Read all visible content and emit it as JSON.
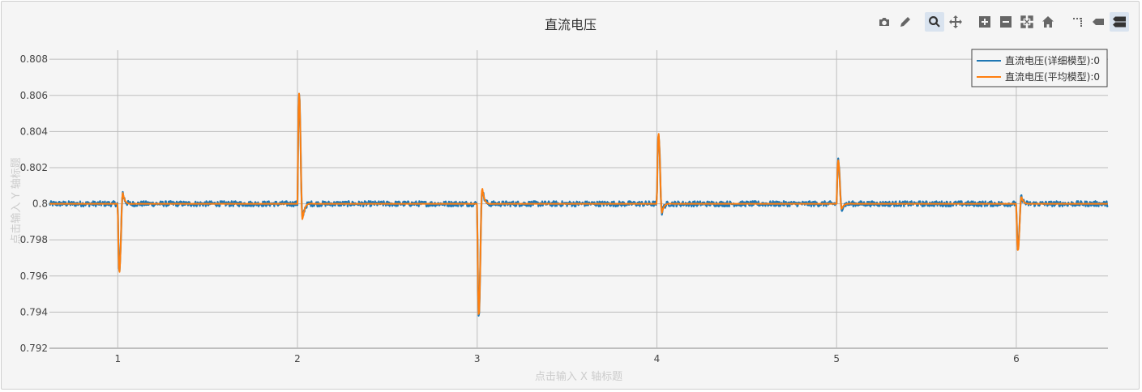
{
  "toolbar": {
    "buttons": [
      {
        "name": "camera-icon",
        "active": false
      },
      {
        "name": "pencil-icon",
        "active": false
      },
      {
        "name": "zoom-icon",
        "active": true
      },
      {
        "name": "pan-icon",
        "active": false
      },
      {
        "name": "zoom-in-icon",
        "active": false
      },
      {
        "name": "zoom-out-icon",
        "active": false
      },
      {
        "name": "autoscale-icon",
        "active": false
      },
      {
        "name": "home-icon",
        "active": false
      },
      {
        "name": "spike-lines-icon",
        "active": false
      },
      {
        "name": "hover-closest-icon",
        "active": false
      },
      {
        "name": "hover-compare-icon",
        "active": true
      }
    ]
  },
  "chart_data": {
    "type": "line",
    "title": "直流电压",
    "xlabel": "点击输入 X 轴标题",
    "ylabel": "点击输入 Y 轴标题",
    "xlim": [
      0.62,
      6.51
    ],
    "ylim": [
      0.792,
      0.8085
    ],
    "x_ticks": [
      1,
      2,
      3,
      4,
      5,
      6
    ],
    "x_tick_labels": [
      "1",
      "2",
      "3",
      "4",
      "5",
      "6"
    ],
    "y_ticks": [
      0.792,
      0.794,
      0.796,
      0.798,
      0.8,
      0.802,
      0.804,
      0.806,
      0.808
    ],
    "y_tick_labels": [
      "0.792",
      "0.794",
      "0.796",
      "0.798",
      "0.8",
      "0.802",
      "0.804",
      "0.806",
      "0.808"
    ],
    "grid": true,
    "legend_position": "top-right",
    "baseline": 0.8,
    "events": [
      {
        "t": 1.0,
        "peak": 0.7962,
        "overshoot": 0.8006
      },
      {
        "t": 2.0,
        "peak": 0.8061,
        "overshoot": 0.7991
      },
      {
        "t": 3.0,
        "peak": 0.7938,
        "overshoot": 0.8009
      },
      {
        "t": 4.0,
        "peak": 0.8039,
        "overshoot": 0.7995
      },
      {
        "t": 5.0,
        "peak": 0.8024,
        "overshoot": 0.7997
      },
      {
        "t": 6.0,
        "peak": 0.7974,
        "overshoot": 0.8004
      }
    ],
    "series": [
      {
        "name": "直流电压(详细模型):0",
        "color": "#1f77b4",
        "noise": 0.00015
      },
      {
        "name": "直流电压(平均模型):0",
        "color": "#ff7f0e",
        "noise": 0.0
      }
    ]
  }
}
